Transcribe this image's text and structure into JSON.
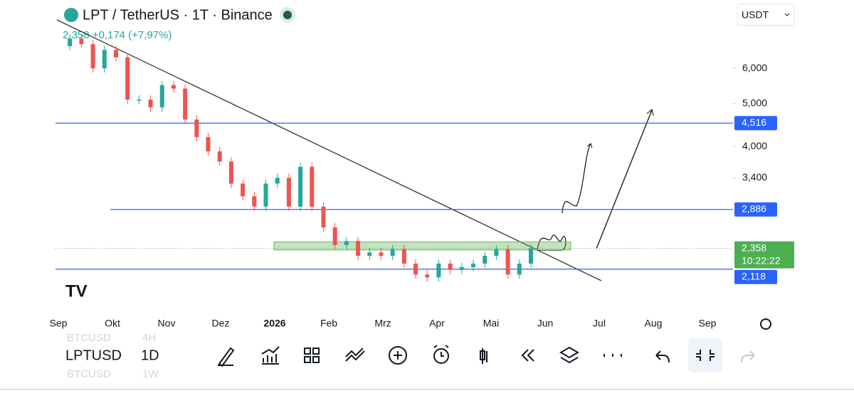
{
  "header": {
    "title": "LPT / TetherUS · 1T · Binance",
    "quote": "2,358 +0,174 (+7,97%)",
    "currency": "USDT"
  },
  "chart": {
    "log_scale": true,
    "ylim": [
      1.69,
      8.55
    ],
    "yticks": [
      {
        "value": 6,
        "label": "6,000"
      },
      {
        "value": 5,
        "label": "5,000"
      },
      {
        "value": 4,
        "label": "4,000"
      },
      {
        "value": 3.4,
        "label": "3,400"
      }
    ],
    "levels": [
      {
        "value": 4.516,
        "label": "4,516",
        "color": "#2962ff"
      },
      {
        "value": 2.886,
        "label": "2,886",
        "color": "#2962ff"
      },
      {
        "value": 2.118,
        "label": "2,118",
        "color": "#2962ff"
      }
    ],
    "last": {
      "value": 2.358,
      "label": "2,358",
      "countdown": "10:22:22",
      "color": "#4caf50"
    },
    "zone": [
      2.34,
      2.44
    ],
    "months": [
      "Sep",
      "Okt",
      "Nov",
      "Dez",
      "2026",
      "Feb",
      "Mrz",
      "Apr",
      "Mai",
      "Jun",
      "Jul",
      "Aug",
      "Sep"
    ],
    "closes": [
      6.73,
      7.0,
      6.8,
      6.0,
      6.6,
      6.35,
      5.1,
      5.1,
      4.9,
      5.5,
      5.4,
      4.6,
      4.2,
      3.9,
      3.7,
      3.3,
      3.09,
      2.93,
      3.3,
      3.4,
      2.93,
      3.6,
      2.93,
      2.63,
      2.4,
      2.45,
      2.27,
      2.31,
      2.27,
      2.35,
      2.18,
      2.06,
      2.03,
      2.18,
      2.11,
      2.14,
      2.18,
      2.27,
      2.35,
      2.06,
      2.18,
      2.358
    ],
    "up_color": "#26a69a",
    "down_color": "#ef5350"
  },
  "footer": {
    "symbol": "LPTUSD",
    "interval": "1D",
    "ghost_symbols": [
      "BTCUSD",
      "BTCUSD"
    ],
    "ghost_intervals": [
      "4H",
      "1W"
    ]
  }
}
